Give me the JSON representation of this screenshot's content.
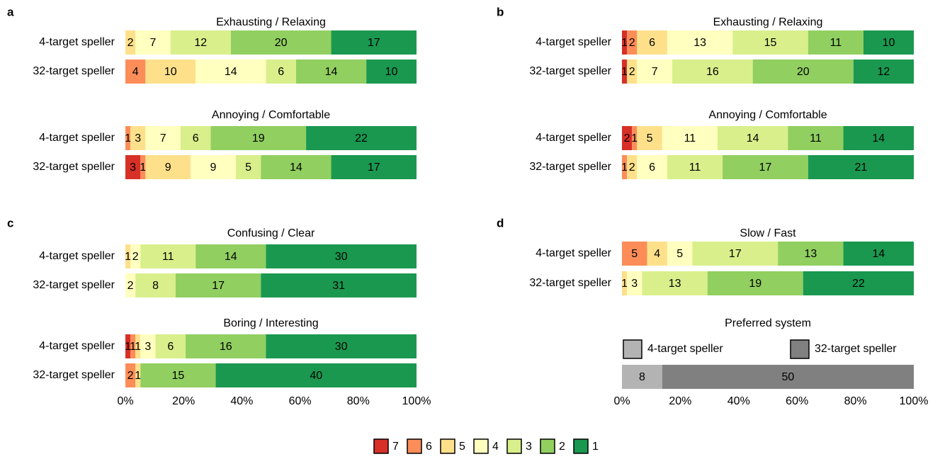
{
  "ratings": [
    "7",
    "6",
    "5",
    "4",
    "3",
    "2",
    "1"
  ],
  "rating_colors": [
    "#d73027",
    "#fc8d59",
    "#fee08b",
    "#ffffbf",
    "#d9ef8b",
    "#91cf60",
    "#1a9850"
  ],
  "chart_data": [
    {
      "type": "stacked-bar",
      "panel": "a",
      "title": "Exhausting / Relaxing",
      "categories": [
        "4-target speller",
        "32-target speller"
      ],
      "series": [
        {
          "values": [
            0,
            0
          ]
        },
        {
          "values": [
            0,
            4
          ]
        },
        {
          "values": [
            2,
            10
          ]
        },
        {
          "values": [
            7,
            14
          ]
        },
        {
          "values": [
            12,
            6
          ]
        },
        {
          "values": [
            20,
            14
          ]
        },
        {
          "values": [
            17,
            10
          ]
        }
      ]
    },
    {
      "type": "stacked-bar",
      "title": "Annoying / Comfortable",
      "categories": [
        "4-target speller",
        "32-target speller"
      ],
      "series": [
        {
          "values": [
            0,
            3
          ]
        },
        {
          "values": [
            1,
            1
          ]
        },
        {
          "values": [
            3,
            9
          ]
        },
        {
          "values": [
            7,
            9
          ]
        },
        {
          "values": [
            6,
            5
          ]
        },
        {
          "values": [
            19,
            14
          ]
        },
        {
          "values": [
            22,
            17
          ]
        }
      ]
    },
    {
      "type": "stacked-bar",
      "panel": "b",
      "title": "Exhausting / Relaxing",
      "categories": [
        "4-target speller",
        "32-target speller"
      ],
      "series": [
        {
          "values": [
            1,
            1
          ]
        },
        {
          "values": [
            2,
            0
          ]
        },
        {
          "values": [
            6,
            2
          ]
        },
        {
          "values": [
            13,
            7
          ]
        },
        {
          "values": [
            15,
            16
          ]
        },
        {
          "values": [
            11,
            20
          ]
        },
        {
          "values": [
            10,
            12
          ]
        }
      ]
    },
    {
      "type": "stacked-bar",
      "title": "Annoying / Comfortable",
      "categories": [
        "4-target speller",
        "32-target speller"
      ],
      "series": [
        {
          "values": [
            2,
            0
          ]
        },
        {
          "values": [
            1,
            1
          ]
        },
        {
          "values": [
            5,
            2
          ]
        },
        {
          "values": [
            11,
            6
          ]
        },
        {
          "values": [
            14,
            11
          ]
        },
        {
          "values": [
            11,
            17
          ]
        },
        {
          "values": [
            14,
            21
          ]
        }
      ]
    },
    {
      "type": "stacked-bar",
      "panel": "c",
      "title": "Confusing / Clear",
      "categories": [
        "4-target speller",
        "32-target speller"
      ],
      "series": [
        {
          "values": [
            0,
            0
          ]
        },
        {
          "values": [
            0,
            0
          ]
        },
        {
          "values": [
            1,
            0
          ]
        },
        {
          "values": [
            2,
            2
          ]
        },
        {
          "values": [
            11,
            8
          ]
        },
        {
          "values": [
            14,
            17
          ]
        },
        {
          "values": [
            30,
            31
          ]
        }
      ]
    },
    {
      "type": "stacked-bar",
      "title": "Boring / Interesting",
      "categories": [
        "4-target speller",
        "32-target speller"
      ],
      "series": [
        {
          "values": [
            1,
            0
          ]
        },
        {
          "values": [
            1,
            2
          ]
        },
        {
          "values": [
            1,
            1
          ]
        },
        {
          "values": [
            3,
            0
          ]
        },
        {
          "values": [
            6,
            0
          ]
        },
        {
          "values": [
            16,
            15
          ]
        },
        {
          "values": [
            30,
            40
          ]
        }
      ],
      "xlim": [
        0,
        100
      ],
      "xticks": [
        {
          "value": 0,
          "label": "0%"
        },
        {
          "value": 20,
          "label": "20%"
        },
        {
          "value": 40,
          "label": "40%"
        },
        {
          "value": 60,
          "label": "60%"
        },
        {
          "value": 80,
          "label": "80%"
        },
        {
          "value": 100,
          "label": "100%"
        }
      ]
    },
    {
      "type": "stacked-bar",
      "panel": "d",
      "title": "Slow / Fast",
      "categories": [
        "4-target speller",
        "32-target speller"
      ],
      "series": [
        {
          "values": [
            0,
            0
          ]
        },
        {
          "values": [
            5,
            0
          ]
        },
        {
          "values": [
            4,
            1
          ]
        },
        {
          "values": [
            5,
            3
          ]
        },
        {
          "values": [
            17,
            13
          ]
        },
        {
          "values": [
            13,
            19
          ]
        },
        {
          "values": [
            14,
            22
          ]
        }
      ]
    },
    {
      "type": "stacked-bar",
      "title": "Preferred system",
      "series": [
        {
          "name": "4-target speller",
          "color": "#b3b3b3",
          "values": [
            8
          ]
        },
        {
          "name": "32-target speller",
          "color": "#808080",
          "values": [
            50
          ]
        }
      ],
      "xlim": [
        0,
        100
      ],
      "xticks": [
        {
          "value": 0,
          "label": "0%"
        },
        {
          "value": 20,
          "label": "20%"
        },
        {
          "value": 40,
          "label": "40%"
        },
        {
          "value": 60,
          "label": "60%"
        },
        {
          "value": 80,
          "label": "80%"
        },
        {
          "value": 100,
          "label": "100%"
        }
      ]
    }
  ]
}
